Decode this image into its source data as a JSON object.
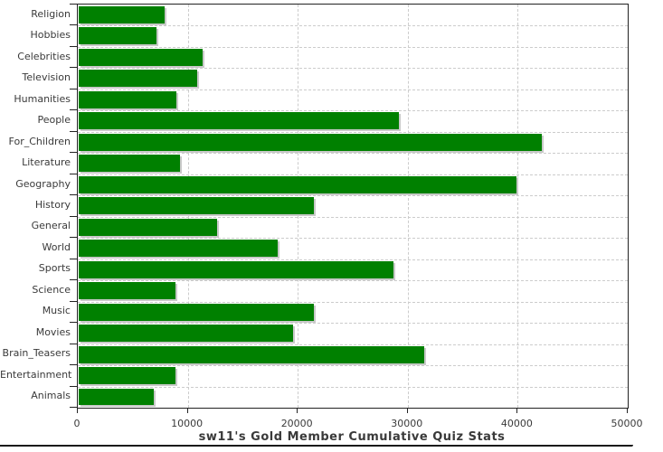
{
  "title": "sw11's Gold Member Cumulative Quiz Stats",
  "colors": {
    "bar": "#008000",
    "bar_shadow": "#c9c9c9",
    "grid": "#cccccc",
    "axis": "#222222",
    "text": "#3a3a3a",
    "background": "#ffffff"
  },
  "chart_data": {
    "type": "bar",
    "orientation": "horizontal",
    "title": "sw11's Gold Member Cumulative Quiz Stats",
    "xlabel": "",
    "ylabel": "",
    "xlim": [
      0,
      50000
    ],
    "xticks": [
      0,
      10000,
      20000,
      30000,
      40000,
      50000
    ],
    "grid": true,
    "legend": false,
    "categories": [
      "Religion",
      "Hobbies",
      "Celebrities",
      "Television",
      "Humanities",
      "People",
      "For_Children",
      "Literature",
      "Geography",
      "History",
      "General",
      "World",
      "Sports",
      "Science",
      "Music",
      "Movies",
      "Brain_Teasers",
      "Entertainment",
      "Animals"
    ],
    "values": [
      7800,
      7100,
      11300,
      10800,
      8900,
      29100,
      42100,
      9200,
      39800,
      21400,
      12600,
      18100,
      28600,
      8800,
      21400,
      19500,
      31400,
      8800,
      6800
    ]
  }
}
